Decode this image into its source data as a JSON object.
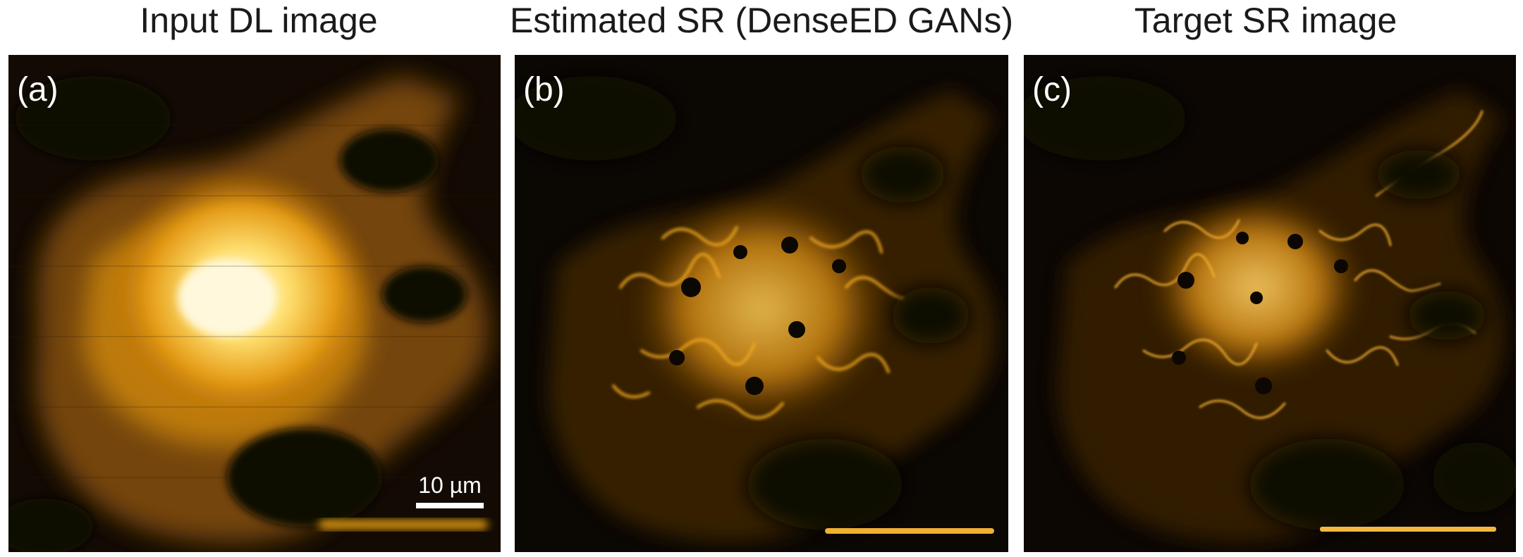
{
  "panels": [
    {
      "title": "Input DL image",
      "label": "(a)",
      "scale_bar": "10 µm",
      "style": "diffraction-limited"
    },
    {
      "title": "Estimated SR (DenseED GANs)",
      "label": "(b)",
      "style": "estimated"
    },
    {
      "title": "Target SR image",
      "label": "(c)",
      "style": "target"
    }
  ],
  "colors": {
    "background": "#0a0602",
    "cell_dim": "#6b3f08",
    "cell_mid": "#c27a10",
    "cell_bright": "#ffc83a",
    "cell_core": "#fff6d8",
    "text": "#ffffff"
  }
}
